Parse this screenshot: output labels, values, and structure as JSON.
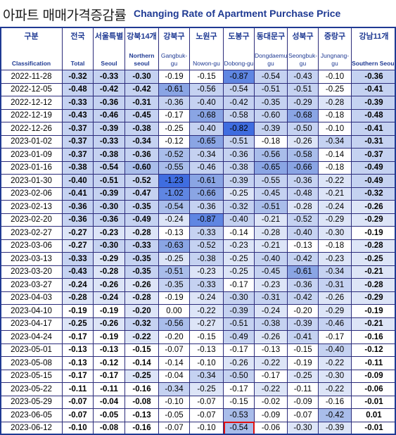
{
  "title": {
    "korean": "아파트 매매가격증감률",
    "english": "Changing Rate of Apartment Purchase Price"
  },
  "header": {
    "korean": [
      "구분",
      "전국",
      "서울특별",
      "강북14개",
      "강북구",
      "노원구",
      "도봉구",
      "동대문구",
      "성북구",
      "중랑구",
      "강남11개"
    ],
    "english": [
      "Classification",
      "Total",
      "Seoul",
      "Northern seoul",
      "Gangbuk-gu",
      "Nowon-gu",
      "Dobong-gu",
      "Dongdaemun-gu",
      "Seongbuk-gu",
      "Jungnang-gu",
      "Southern Seoul"
    ]
  },
  "colors": {
    "c0": "#ffffff",
    "c1": "#dde5f7",
    "c2": "#c5d2f1",
    "c3": "#a9bdea",
    "c4": "#8aa5e4",
    "c5": "#5f86e2",
    "c6": "#3f6de0"
  },
  "rows": [
    {
      "date": "2022-11-28",
      "values": [
        "-0.32",
        "-0.33",
        "-0.30",
        "-0.19",
        "-0.15",
        "-0.87",
        "-0.54",
        "-0.43",
        "-0.10",
        "-0.36"
      ],
      "shades": [
        2,
        2,
        2,
        0,
        0,
        5,
        2,
        2,
        0,
        2
      ]
    },
    {
      "date": "2022-12-05",
      "values": [
        "-0.48",
        "-0.42",
        "-0.42",
        "-0.61",
        "-0.56",
        "-0.54",
        "-0.51",
        "-0.51",
        "-0.25",
        "-0.41"
      ],
      "shades": [
        2,
        2,
        2,
        4,
        2,
        2,
        2,
        2,
        0,
        2
      ]
    },
    {
      "date": "2022-12-12",
      "values": [
        "-0.33",
        "-0.36",
        "-0.31",
        "-0.36",
        "-0.40",
        "-0.42",
        "-0.35",
        "-0.29",
        "-0.28",
        "-0.39"
      ],
      "shades": [
        2,
        2,
        2,
        2,
        2,
        2,
        2,
        2,
        1,
        2
      ]
    },
    {
      "date": "2022-12-19",
      "values": [
        "-0.43",
        "-0.46",
        "-0.45",
        "-0.17",
        "-0.68",
        "-0.58",
        "-0.60",
        "-0.68",
        "-0.18",
        "-0.48"
      ],
      "shades": [
        2,
        2,
        2,
        0,
        4,
        2,
        2,
        4,
        0,
        2
      ]
    },
    {
      "date": "2022-12-26",
      "values": [
        "-0.37",
        "-0.39",
        "-0.38",
        "-0.25",
        "-0.40",
        "-0.82",
        "-0.39",
        "-0.50",
        "-0.10",
        "-0.41"
      ],
      "shades": [
        2,
        2,
        2,
        0,
        2,
        6,
        2,
        2,
        0,
        2
      ]
    },
    {
      "date": "2023-01-02",
      "values": [
        "-0.37",
        "-0.33",
        "-0.34",
        "-0.12",
        "-0.65",
        "-0.51",
        "-0.18",
        "-0.26",
        "-0.34",
        "-0.31"
      ],
      "shades": [
        2,
        2,
        2,
        0,
        4,
        2,
        0,
        1,
        2,
        2
      ]
    },
    {
      "date": "2023-01-09",
      "values": [
        "-0.37",
        "-0.38",
        "-0.36",
        "-0.52",
        "-0.34",
        "-0.36",
        "-0.56",
        "-0.58",
        "-0.14",
        "-0.37"
      ],
      "shades": [
        2,
        2,
        2,
        3,
        2,
        2,
        3,
        3,
        0,
        2
      ]
    },
    {
      "date": "2023-01-16",
      "values": [
        "-0.38",
        "-0.54",
        "-0.60",
        "-0.55",
        "-0.46",
        "-0.38",
        "-0.65",
        "-0.66",
        "-0.18",
        "-0.49"
      ],
      "shades": [
        2,
        2,
        3,
        3,
        2,
        2,
        4,
        4,
        0,
        2
      ]
    },
    {
      "date": "2023-01-30",
      "values": [
        "-0.40",
        "-0.51",
        "-0.52",
        "-1.23",
        "-0.61",
        "-0.39",
        "-0.55",
        "-0.36",
        "-0.22",
        "-0.49"
      ],
      "shades": [
        2,
        2,
        2,
        6,
        4,
        2,
        2,
        2,
        1,
        2
      ]
    },
    {
      "date": "2023-02-06",
      "values": [
        "-0.41",
        "-0.39",
        "-0.47",
        "-1.02",
        "-0.66",
        "-0.25",
        "-0.45",
        "-0.48",
        "-0.21",
        "-0.32"
      ],
      "shades": [
        2,
        2,
        2,
        5,
        4,
        1,
        2,
        2,
        1,
        2
      ]
    },
    {
      "date": "2023-02-13",
      "values": [
        "-0.36",
        "-0.30",
        "-0.35",
        "-0.54",
        "-0.36",
        "-0.32",
        "-0.51",
        "-0.28",
        "-0.24",
        "-0.26"
      ],
      "shades": [
        2,
        2,
        2,
        3,
        2,
        2,
        3,
        1,
        1,
        1
      ]
    },
    {
      "date": "2023-02-20",
      "values": [
        "-0.36",
        "-0.36",
        "-0.49",
        "-0.24",
        "-0.87",
        "-0.40",
        "-0.21",
        "-0.52",
        "-0.29",
        "-0.29"
      ],
      "shades": [
        2,
        2,
        2,
        1,
        5,
        2,
        1,
        2,
        1,
        1
      ]
    },
    {
      "date": "2023-02-27",
      "values": [
        "-0.27",
        "-0.23",
        "-0.28",
        "-0.13",
        "-0.33",
        "-0.14",
        "-0.28",
        "-0.40",
        "-0.30",
        "-0.19"
      ],
      "shades": [
        1,
        1,
        1,
        0,
        2,
        0,
        1,
        2,
        1,
        0
      ]
    },
    {
      "date": "2023-03-06",
      "values": [
        "-0.27",
        "-0.30",
        "-0.33",
        "-0.63",
        "-0.52",
        "-0.23",
        "-0.21",
        "-0.13",
        "-0.18",
        "-0.28"
      ],
      "shades": [
        1,
        2,
        2,
        4,
        2,
        1,
        1,
        0,
        0,
        1
      ]
    },
    {
      "date": "2023-03-13",
      "values": [
        "-0.33",
        "-0.29",
        "-0.35",
        "-0.25",
        "-0.38",
        "-0.25",
        "-0.40",
        "-0.42",
        "-0.23",
        "-0.25"
      ],
      "shades": [
        2,
        1,
        2,
        1,
        2,
        1,
        2,
        2,
        1,
        1
      ]
    },
    {
      "date": "2023-03-20",
      "values": [
        "-0.43",
        "-0.28",
        "-0.35",
        "-0.51",
        "-0.23",
        "-0.25",
        "-0.45",
        "-0.61",
        "-0.34",
        "-0.21"
      ],
      "shades": [
        2,
        1,
        2,
        3,
        1,
        1,
        2,
        4,
        2,
        1
      ]
    },
    {
      "date": "2023-03-27",
      "values": [
        "-0.24",
        "-0.26",
        "-0.26",
        "-0.35",
        "-0.33",
        "-0.17",
        "-0.23",
        "-0.36",
        "-0.31",
        "-0.28"
      ],
      "shades": [
        1,
        1,
        1,
        2,
        2,
        0,
        1,
        2,
        2,
        1
      ]
    },
    {
      "date": "2023-04-03",
      "values": [
        "-0.28",
        "-0.24",
        "-0.28",
        "-0.19",
        "-0.24",
        "-0.30",
        "-0.31",
        "-0.42",
        "-0.26",
        "-0.29"
      ],
      "shades": [
        1,
        1,
        1,
        0,
        1,
        2,
        2,
        2,
        1,
        1
      ]
    },
    {
      "date": "2023-04-10",
      "values": [
        "-0.19",
        "-0.19",
        "-0.20",
        "0.00",
        "-0.22",
        "-0.39",
        "-0.24",
        "-0.20",
        "-0.29",
        "-0.19"
      ],
      "shades": [
        0,
        0,
        1,
        0,
        1,
        2,
        1,
        0,
        1,
        0
      ]
    },
    {
      "date": "2023-04-17",
      "values": [
        "-0.25",
        "-0.26",
        "-0.32",
        "-0.56",
        "-0.27",
        "-0.51",
        "-0.38",
        "-0.39",
        "-0.46",
        "-0.21"
      ],
      "shades": [
        1,
        1,
        2,
        3,
        1,
        2,
        2,
        2,
        2,
        1
      ]
    },
    {
      "date": "2023-04-24",
      "values": [
        "-0.17",
        "-0.19",
        "-0.22",
        "-0.20",
        "-0.15",
        "-0.49",
        "-0.26",
        "-0.41",
        "-0.17",
        "-0.16"
      ],
      "shades": [
        0,
        0,
        1,
        0,
        0,
        2,
        1,
        2,
        0,
        0
      ]
    },
    {
      "date": "2023-05-01",
      "values": [
        "-0.13",
        "-0.13",
        "-0.15",
        "-0.07",
        "-0.13",
        "-0.17",
        "-0.13",
        "-0.15",
        "-0.40",
        "-0.12"
      ],
      "shades": [
        0,
        0,
        0,
        0,
        0,
        0,
        0,
        0,
        2,
        0
      ]
    },
    {
      "date": "2023-05-08",
      "values": [
        "-0.13",
        "-0.12",
        "-0.14",
        "-0.14",
        "-0.10",
        "-0.26",
        "-0.22",
        "-0.19",
        "-0.22",
        "-0.11"
      ],
      "shades": [
        0,
        0,
        0,
        0,
        0,
        1,
        1,
        0,
        1,
        0
      ]
    },
    {
      "date": "2023-05-15",
      "values": [
        "-0.17",
        "-0.17",
        "-0.25",
        "-0.04",
        "-0.34",
        "-0.50",
        "-0.17",
        "-0.25",
        "-0.30",
        "-0.09"
      ],
      "shades": [
        0,
        0,
        1,
        0,
        2,
        2,
        0,
        1,
        1,
        0
      ]
    },
    {
      "date": "2023-05-22",
      "values": [
        "-0.11",
        "-0.11",
        "-0.16",
        "-0.34",
        "-0.25",
        "-0.17",
        "-0.22",
        "-0.11",
        "-0.22",
        "-0.06"
      ],
      "shades": [
        0,
        0,
        0,
        2,
        1,
        0,
        1,
        0,
        1,
        0
      ]
    },
    {
      "date": "2023-05-29",
      "values": [
        "-0.07",
        "-0.04",
        "-0.08",
        "-0.10",
        "-0.07",
        "-0.15",
        "-0.02",
        "-0.09",
        "-0.16",
        "-0.01"
      ],
      "shades": [
        0,
        0,
        0,
        0,
        0,
        0,
        0,
        0,
        0,
        0
      ]
    },
    {
      "date": "2023-06-05",
      "values": [
        "-0.07",
        "-0.05",
        "-0.13",
        "-0.05",
        "-0.07",
        "-0.53",
        "-0.09",
        "-0.07",
        "-0.42",
        "0.01"
      ],
      "shades": [
        0,
        0,
        0,
        0,
        0,
        3,
        0,
        0,
        3,
        0
      ]
    },
    {
      "date": "2023-06-12",
      "values": [
        "-0.10",
        "-0.08",
        "-0.16",
        "-0.07",
        "-0.10",
        "-0.54",
        "-0.06",
        "-0.30",
        "-0.39",
        "-0.01"
      ],
      "shades": [
        0,
        0,
        0,
        0,
        0,
        3,
        0,
        1,
        1,
        0
      ],
      "highlight": 5
    }
  ]
}
